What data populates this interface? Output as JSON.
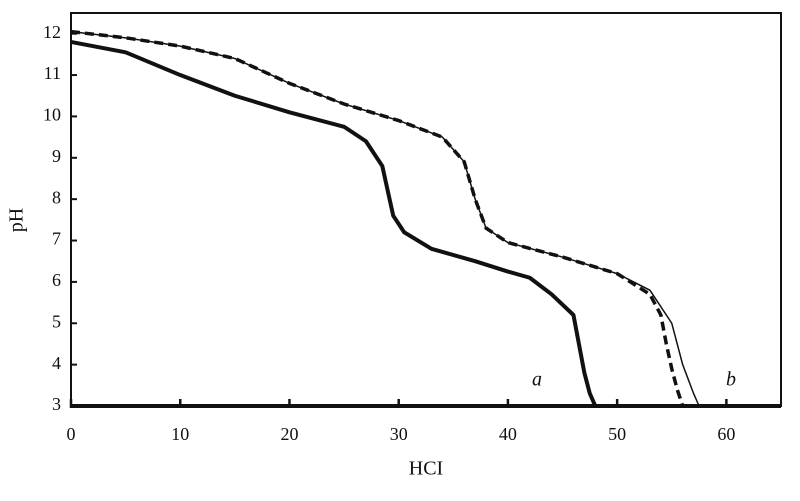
{
  "chart_data": {
    "type": "line",
    "x_label": "HCI",
    "y_label": "pH",
    "xlim": [
      0,
      65
    ],
    "ylim": [
      3,
      12.5
    ],
    "xticks": [
      0,
      10,
      20,
      30,
      40,
      50,
      60
    ],
    "yticks": [
      3,
      4,
      5,
      6,
      7,
      8,
      9,
      10,
      11,
      12
    ],
    "annotations": [
      "a",
      "b"
    ],
    "series": [
      {
        "color": "#111111",
        "style": "solid-thick",
        "x": [
          0,
          5,
          10,
          15,
          20,
          25,
          27,
          28.5,
          29,
          29.5,
          30.5,
          33,
          37,
          40,
          42,
          44,
          46,
          46.5,
          47,
          47.5,
          48
        ],
        "values": [
          11.8,
          11.55,
          11.0,
          10.5,
          10.1,
          9.75,
          9.4,
          8.8,
          8.2,
          7.6,
          7.2,
          6.8,
          6.5,
          6.25,
          6.1,
          5.7,
          5.2,
          4.5,
          3.8,
          3.3,
          3.0
        ]
      },
      {
        "color": "#111111",
        "style": "solid-thin",
        "x": [
          0,
          5,
          10,
          15,
          20,
          25,
          30,
          34,
          36,
          37,
          38,
          40,
          45,
          50,
          53,
          55,
          56,
          57,
          57.5
        ],
        "values": [
          12.05,
          11.9,
          11.7,
          11.4,
          10.8,
          10.3,
          9.9,
          9.5,
          8.9,
          8.0,
          7.3,
          6.95,
          6.6,
          6.2,
          5.8,
          5.0,
          4.0,
          3.3,
          3.0
        ]
      },
      {
        "color": "#111111",
        "style": "dashed-thick",
        "x": [
          0,
          5,
          10,
          15,
          20,
          25,
          30,
          34,
          36,
          37,
          38,
          40,
          45,
          50,
          53,
          54,
          54.5,
          55,
          55.5,
          56
        ],
        "values": [
          12.05,
          11.9,
          11.7,
          11.4,
          10.8,
          10.3,
          9.9,
          9.5,
          8.9,
          8.0,
          7.3,
          6.95,
          6.6,
          6.2,
          5.7,
          5.2,
          4.5,
          3.9,
          3.4,
          3.0
        ]
      }
    ]
  }
}
